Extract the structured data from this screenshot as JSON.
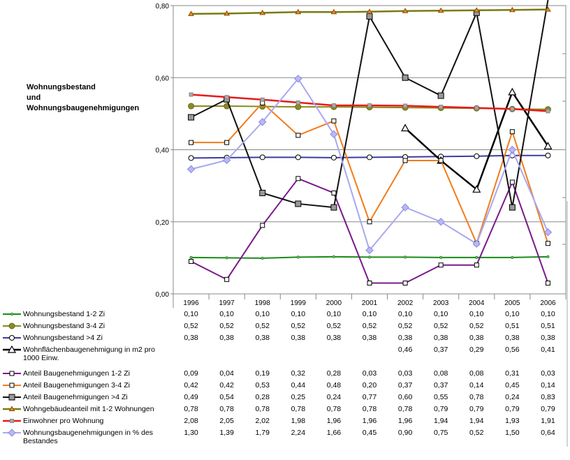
{
  "chart_data": {
    "type": "line",
    "title": "Wohnungsbestand\nund\nWohnungsbaugenehmigungen",
    "xlabel": "",
    "ylabel": "",
    "ylim": [
      0,
      0.8
    ],
    "yticks": [
      "0,00",
      "0,20",
      "0,40",
      "0,60",
      "0,80"
    ],
    "ytick_values": [
      0,
      0.2,
      0.4,
      0.6,
      0.8
    ],
    "grid": true,
    "legend": "data-table-left",
    "categories": [
      "1996",
      "1997",
      "1998",
      "1999",
      "2000",
      "2001",
      "2002",
      "2003",
      "2004",
      "2005",
      "2006"
    ],
    "series": [
      {
        "name": "Wohnungsbestand 1-2 Zi",
        "color": "#1a8a1a",
        "marker": "dot",
        "width": 2,
        "values": [
          0.101,
          0.1,
          0.099,
          0.102,
          0.103,
          0.102,
          0.102,
          0.101,
          0.101,
          0.101,
          0.103
        ],
        "labels": [
          "0,10",
          "0,10",
          "0,10",
          "0,10",
          "0,10",
          "0,10",
          "0,10",
          "0,10",
          "0,10",
          "0,10",
          "0,10"
        ]
      },
      {
        "name": "Wohnungsbestand 3-4 Zi",
        "color": "#8a8a1a",
        "marker": "circle-filled",
        "width": 2,
        "values": [
          0.521,
          0.521,
          0.52,
          0.519,
          0.519,
          0.518,
          0.517,
          0.516,
          0.515,
          0.513,
          0.512
        ],
        "labels": [
          "0,52",
          "0,52",
          "0,52",
          "0,52",
          "0,52",
          "0,52",
          "0,52",
          "0,52",
          "0,52",
          "0,51",
          "0,51"
        ]
      },
      {
        "name": "Wohnungsbestand >4 Zi",
        "color": "#3c3ca0",
        "marker": "circle-open",
        "width": 2,
        "values": [
          0.377,
          0.378,
          0.379,
          0.379,
          0.378,
          0.379,
          0.38,
          0.381,
          0.382,
          0.384,
          0.384
        ],
        "labels": [
          "0,38",
          "0,38",
          "0,38",
          "0,38",
          "0,38",
          "0,38",
          "0,38",
          "0,38",
          "0,38",
          "0,38",
          "0,38"
        ]
      },
      {
        "name": "Wohnflächenbaugenehmigung in m2 pro 1000 Einw.",
        "color": "#000000",
        "marker": "triangle-open",
        "width": 2.5,
        "values": [
          null,
          null,
          null,
          null,
          null,
          null,
          0.46,
          0.37,
          0.29,
          0.56,
          0.41
        ],
        "labels": [
          "",
          "",
          "",
          "",
          "",
          "",
          "0,46",
          "0,37",
          "0,29",
          "0,56",
          "0,41"
        ]
      },
      {
        "name": "Anteil Baugenehmigungen 1-2 Zi",
        "color": "#7a1a8a",
        "marker": "square-open",
        "width": 2,
        "values": [
          0.09,
          0.04,
          0.19,
          0.32,
          0.28,
          0.03,
          0.03,
          0.08,
          0.08,
          0.31,
          0.03
        ],
        "labels": [
          "0,09",
          "0,04",
          "0,19",
          "0,32",
          "0,28",
          "0,03",
          "0,03",
          "0,08",
          "0,08",
          "0,31",
          "0,03"
        ]
      },
      {
        "name": "Anteil Baugenehmigungen 3-4 Zi",
        "color": "#f07c1a",
        "marker": "square-open",
        "width": 2,
        "values": [
          0.42,
          0.42,
          0.53,
          0.44,
          0.48,
          0.2,
          0.37,
          0.37,
          0.14,
          0.45,
          0.14
        ],
        "labels": [
          "0,42",
          "0,42",
          "0,53",
          "0,44",
          "0,48",
          "0,20",
          "0,37",
          "0,37",
          "0,14",
          "0,45",
          "0,14"
        ]
      },
      {
        "name": "Anteil Baugenehmigungen >4 Zi",
        "color": "#111111",
        "marker": "square-gray",
        "width": 2,
        "values": [
          0.49,
          0.54,
          0.28,
          0.25,
          0.24,
          0.77,
          0.6,
          0.55,
          0.78,
          0.24,
          0.83
        ],
        "labels": [
          "0,49",
          "0,54",
          "0,28",
          "0,25",
          "0,24",
          "0,77",
          "0,60",
          "0,55",
          "0,78",
          "0,24",
          "0,83"
        ]
      },
      {
        "name": "Wohngebäudeanteil mit 1-2 Wohnungen",
        "color": "#7a7a10",
        "marker": "triangle-orange",
        "width": 2.5,
        "values": [
          0.777,
          0.778,
          0.78,
          0.782,
          0.782,
          0.783,
          0.785,
          0.786,
          0.787,
          0.788,
          0.789
        ],
        "labels": [
          "0,78",
          "0,78",
          "0,78",
          "0,78",
          "0,78",
          "0,78",
          "0,78",
          "0,79",
          "0,79",
          "0,79",
          "0,79"
        ]
      },
      {
        "name": "Einwohner pro Wohnung",
        "color": "#e81a1a",
        "marker": "square-small-gray",
        "width": 2.5,
        "values": [
          0.553,
          0.546,
          0.539,
          0.531,
          0.523,
          0.523,
          0.522,
          0.519,
          0.516,
          0.513,
          0.507
        ],
        "labels": [
          "2,08",
          "2,05",
          "2,02",
          "1,98",
          "1,96",
          "1,96",
          "1,96",
          "1,94",
          "1,94",
          "1,93",
          "1,91"
        ]
      },
      {
        "name": "Wohnungsbaugenehmigungen in % des Bestandes",
        "color": "#a8a8f0",
        "marker": "diamond",
        "width": 2,
        "values": [
          0.346,
          0.371,
          0.477,
          0.597,
          0.443,
          0.121,
          0.24,
          0.2,
          0.139,
          0.4,
          0.171
        ],
        "labels": [
          "1,30",
          "1,39",
          "1,79",
          "2,24",
          "1,66",
          "0,45",
          "0,90",
          "0,75",
          "0,52",
          "1,50",
          "0,64"
        ]
      }
    ]
  }
}
